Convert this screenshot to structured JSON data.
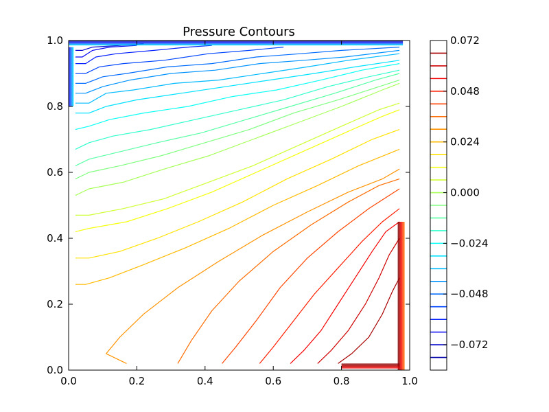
{
  "chart_data": {
    "type": "contour",
    "title": "Pressure Contours",
    "xlabel": "",
    "ylabel": "",
    "xlim": [
      0.0,
      1.0
    ],
    "ylim": [
      0.0,
      1.0
    ],
    "xticks": [
      "0.0",
      "0.2",
      "0.4",
      "0.6",
      "0.8",
      "1.0"
    ],
    "yticks": [
      "0.0",
      "0.2",
      "0.4",
      "0.6",
      "0.8",
      "1.0"
    ],
    "grid": false,
    "colormap": "jet",
    "colorbar": {
      "range": [
        -0.084,
        0.072
      ],
      "tick_values": [
        0.072,
        0.048,
        0.024,
        0.0,
        -0.024,
        -0.048,
        -0.072
      ],
      "tick_labels": [
        "0.072",
        "0.048",
        "0.024",
        "0.000",
        "−0.024",
        "−0.048",
        "−0.072"
      ],
      "level_lines": [
        0.066,
        0.06,
        0.054,
        0.048,
        0.042,
        0.036,
        0.03,
        0.024,
        0.018,
        0.012,
        0.006,
        0.0,
        -0.006,
        -0.012,
        -0.018,
        -0.024,
        -0.03,
        -0.036,
        -0.042,
        -0.048,
        -0.054,
        -0.06,
        -0.066,
        -0.072,
        -0.078
      ]
    },
    "contour_lines": [
      {
        "level": 0.066,
        "points": [
          [
            0.79,
            0.02
          ],
          [
            0.83,
            0.05
          ],
          [
            0.88,
            0.1
          ],
          [
            0.92,
            0.17
          ],
          [
            0.95,
            0.24
          ],
          [
            0.97,
            0.28
          ]
        ]
      },
      {
        "level": 0.06,
        "points": [
          [
            0.73,
            0.02
          ],
          [
            0.77,
            0.06
          ],
          [
            0.82,
            0.12
          ],
          [
            0.87,
            0.2
          ],
          [
            0.91,
            0.28
          ],
          [
            0.94,
            0.35
          ],
          [
            0.97,
            0.4
          ]
        ]
      },
      {
        "level": 0.054,
        "points": [
          [
            0.65,
            0.02
          ],
          [
            0.69,
            0.06
          ],
          [
            0.74,
            0.12
          ],
          [
            0.79,
            0.2
          ],
          [
            0.84,
            0.28
          ],
          [
            0.89,
            0.36
          ],
          [
            0.93,
            0.42
          ],
          [
            0.97,
            0.45
          ]
        ]
      },
      {
        "level": 0.048,
        "points": [
          [
            0.56,
            0.02
          ],
          [
            0.6,
            0.07
          ],
          [
            0.66,
            0.15
          ],
          [
            0.72,
            0.23
          ],
          [
            0.79,
            0.31
          ],
          [
            0.86,
            0.39
          ],
          [
            0.92,
            0.45
          ],
          [
            0.97,
            0.49
          ]
        ]
      },
      {
        "level": 0.042,
        "points": [
          [
            0.45,
            0.02
          ],
          [
            0.49,
            0.07
          ],
          [
            0.55,
            0.15
          ],
          [
            0.62,
            0.25
          ],
          [
            0.7,
            0.34
          ],
          [
            0.79,
            0.42
          ],
          [
            0.88,
            0.49
          ],
          [
            0.97,
            0.55
          ]
        ]
      },
      {
        "level": 0.036,
        "points": [
          [
            0.32,
            0.02
          ],
          [
            0.36,
            0.09
          ],
          [
            0.42,
            0.18
          ],
          [
            0.5,
            0.27
          ],
          [
            0.6,
            0.36
          ],
          [
            0.71,
            0.44
          ],
          [
            0.82,
            0.51
          ],
          [
            0.91,
            0.56
          ],
          [
            0.97,
            0.58
          ]
        ]
      },
      {
        "level": 0.03,
        "points": [
          [
            0.17,
            0.02
          ],
          [
            0.11,
            0.05
          ],
          [
            0.15,
            0.1
          ],
          [
            0.22,
            0.17
          ],
          [
            0.32,
            0.25
          ],
          [
            0.44,
            0.33
          ],
          [
            0.57,
            0.41
          ],
          [
            0.7,
            0.48
          ],
          [
            0.82,
            0.54
          ],
          [
            0.92,
            0.58
          ],
          [
            0.97,
            0.61
          ]
        ]
      },
      {
        "level": 0.024,
        "points": [
          [
            0.02,
            0.26
          ],
          [
            0.05,
            0.26
          ],
          [
            0.12,
            0.28
          ],
          [
            0.22,
            0.32
          ],
          [
            0.34,
            0.37
          ],
          [
            0.47,
            0.43
          ],
          [
            0.6,
            0.5
          ],
          [
            0.73,
            0.56
          ],
          [
            0.85,
            0.62
          ],
          [
            0.97,
            0.67
          ]
        ]
      },
      {
        "level": 0.018,
        "points": [
          [
            0.02,
            0.34
          ],
          [
            0.06,
            0.34
          ],
          [
            0.15,
            0.36
          ],
          [
            0.26,
            0.4
          ],
          [
            0.38,
            0.45
          ],
          [
            0.51,
            0.51
          ],
          [
            0.64,
            0.58
          ],
          [
            0.77,
            0.64
          ],
          [
            0.89,
            0.7
          ],
          [
            0.97,
            0.73
          ]
        ]
      },
      {
        "level": 0.012,
        "points": [
          [
            0.02,
            0.42
          ],
          [
            0.06,
            0.43
          ],
          [
            0.17,
            0.45
          ],
          [
            0.29,
            0.49
          ],
          [
            0.42,
            0.54
          ],
          [
            0.55,
            0.6
          ],
          [
            0.68,
            0.66
          ],
          [
            0.81,
            0.72
          ],
          [
            0.92,
            0.77
          ],
          [
            0.97,
            0.79
          ]
        ]
      },
      {
        "level": 0.006,
        "points": [
          [
            0.02,
            0.47
          ],
          [
            0.06,
            0.47
          ],
          [
            0.16,
            0.49
          ],
          [
            0.28,
            0.52
          ],
          [
            0.41,
            0.57
          ],
          [
            0.54,
            0.62
          ],
          [
            0.67,
            0.68
          ],
          [
            0.8,
            0.74
          ],
          [
            0.91,
            0.79
          ],
          [
            0.97,
            0.81
          ]
        ]
      },
      {
        "level": 0.0,
        "points": [
          [
            0.02,
            0.53
          ],
          [
            0.06,
            0.55
          ],
          [
            0.16,
            0.57
          ],
          [
            0.28,
            0.61
          ],
          [
            0.41,
            0.65
          ],
          [
            0.54,
            0.7
          ],
          [
            0.67,
            0.75
          ],
          [
            0.8,
            0.8
          ],
          [
            0.92,
            0.85
          ],
          [
            0.97,
            0.87
          ]
        ]
      },
      {
        "level": -0.006,
        "points": [
          [
            0.02,
            0.58
          ],
          [
            0.06,
            0.6
          ],
          [
            0.15,
            0.62
          ],
          [
            0.27,
            0.65
          ],
          [
            0.4,
            0.69
          ],
          [
            0.53,
            0.73
          ],
          [
            0.66,
            0.78
          ],
          [
            0.79,
            0.82
          ],
          [
            0.91,
            0.86
          ],
          [
            0.97,
            0.88
          ]
        ]
      },
      {
        "level": -0.012,
        "points": [
          [
            0.02,
            0.62
          ],
          [
            0.06,
            0.64
          ],
          [
            0.14,
            0.66
          ],
          [
            0.26,
            0.69
          ],
          [
            0.39,
            0.72
          ],
          [
            0.52,
            0.76
          ],
          [
            0.65,
            0.8
          ],
          [
            0.78,
            0.84
          ],
          [
            0.9,
            0.88
          ],
          [
            0.97,
            0.9
          ]
        ]
      },
      {
        "level": -0.018,
        "points": [
          [
            0.02,
            0.67
          ],
          [
            0.06,
            0.69
          ],
          [
            0.13,
            0.71
          ],
          [
            0.24,
            0.73
          ],
          [
            0.37,
            0.76
          ],
          [
            0.5,
            0.79
          ],
          [
            0.63,
            0.82
          ],
          [
            0.76,
            0.86
          ],
          [
            0.88,
            0.89
          ],
          [
            0.97,
            0.91
          ]
        ]
      },
      {
        "level": -0.024,
        "points": [
          [
            0.02,
            0.73
          ],
          [
            0.06,
            0.74
          ],
          [
            0.12,
            0.76
          ],
          [
            0.22,
            0.78
          ],
          [
            0.35,
            0.8
          ],
          [
            0.48,
            0.83
          ],
          [
            0.61,
            0.85
          ],
          [
            0.74,
            0.88
          ],
          [
            0.86,
            0.91
          ],
          [
            0.97,
            0.93
          ]
        ]
      },
      {
        "level": -0.03,
        "points": [
          [
            0.02,
            0.78
          ],
          [
            0.06,
            0.78
          ],
          [
            0.11,
            0.8
          ],
          [
            0.2,
            0.82
          ],
          [
            0.33,
            0.84
          ],
          [
            0.46,
            0.86
          ],
          [
            0.59,
            0.88
          ],
          [
            0.72,
            0.9
          ],
          [
            0.84,
            0.92
          ],
          [
            0.97,
            0.94
          ]
        ]
      },
      {
        "level": -0.036,
        "points": [
          [
            0.02,
            0.81
          ],
          [
            0.06,
            0.81
          ],
          [
            0.11,
            0.84
          ],
          [
            0.19,
            0.85
          ],
          [
            0.31,
            0.87
          ],
          [
            0.44,
            0.88
          ],
          [
            0.57,
            0.9
          ],
          [
            0.7,
            0.92
          ],
          [
            0.82,
            0.94
          ],
          [
            0.97,
            0.96
          ]
        ]
      },
      {
        "level": -0.042,
        "points": [
          [
            0.02,
            0.84
          ],
          [
            0.05,
            0.84
          ],
          [
            0.1,
            0.86
          ],
          [
            0.18,
            0.88
          ],
          [
            0.3,
            0.9
          ],
          [
            0.43,
            0.91
          ],
          [
            0.56,
            0.93
          ],
          [
            0.69,
            0.94
          ],
          [
            0.81,
            0.95
          ],
          [
            0.97,
            0.97
          ]
        ]
      },
      {
        "level": -0.048,
        "points": [
          [
            0.02,
            0.87
          ],
          [
            0.05,
            0.87
          ],
          [
            0.1,
            0.89
          ],
          [
            0.17,
            0.9
          ],
          [
            0.29,
            0.92
          ],
          [
            0.42,
            0.93
          ],
          [
            0.55,
            0.95
          ],
          [
            0.68,
            0.96
          ],
          [
            0.8,
            0.97
          ],
          [
            0.97,
            0.98
          ]
        ]
      },
      {
        "level": -0.054,
        "points": [
          [
            0.02,
            0.9
          ],
          [
            0.05,
            0.9
          ],
          [
            0.09,
            0.92
          ],
          [
            0.16,
            0.93
          ],
          [
            0.28,
            0.94
          ],
          [
            0.41,
            0.96
          ],
          [
            0.53,
            0.97
          ],
          [
            0.63,
            0.98
          ]
        ]
      },
      {
        "level": -0.06,
        "points": [
          [
            0.02,
            0.93
          ],
          [
            0.05,
            0.93
          ],
          [
            0.08,
            0.95
          ],
          [
            0.14,
            0.96
          ],
          [
            0.25,
            0.97
          ],
          [
            0.35,
            0.98
          ],
          [
            0.42,
            0.985
          ]
        ]
      },
      {
        "level": -0.066,
        "points": [
          [
            0.02,
            0.95
          ],
          [
            0.04,
            0.95
          ],
          [
            0.07,
            0.97
          ],
          [
            0.12,
            0.98
          ],
          [
            0.2,
            0.985
          ]
        ]
      },
      {
        "level": -0.072,
        "points": [
          [
            0.02,
            0.97
          ],
          [
            0.04,
            0.97
          ],
          [
            0.07,
            0.98
          ],
          [
            0.15,
            0.985
          ],
          [
            0.22,
            0.99
          ]
        ]
      }
    ]
  }
}
